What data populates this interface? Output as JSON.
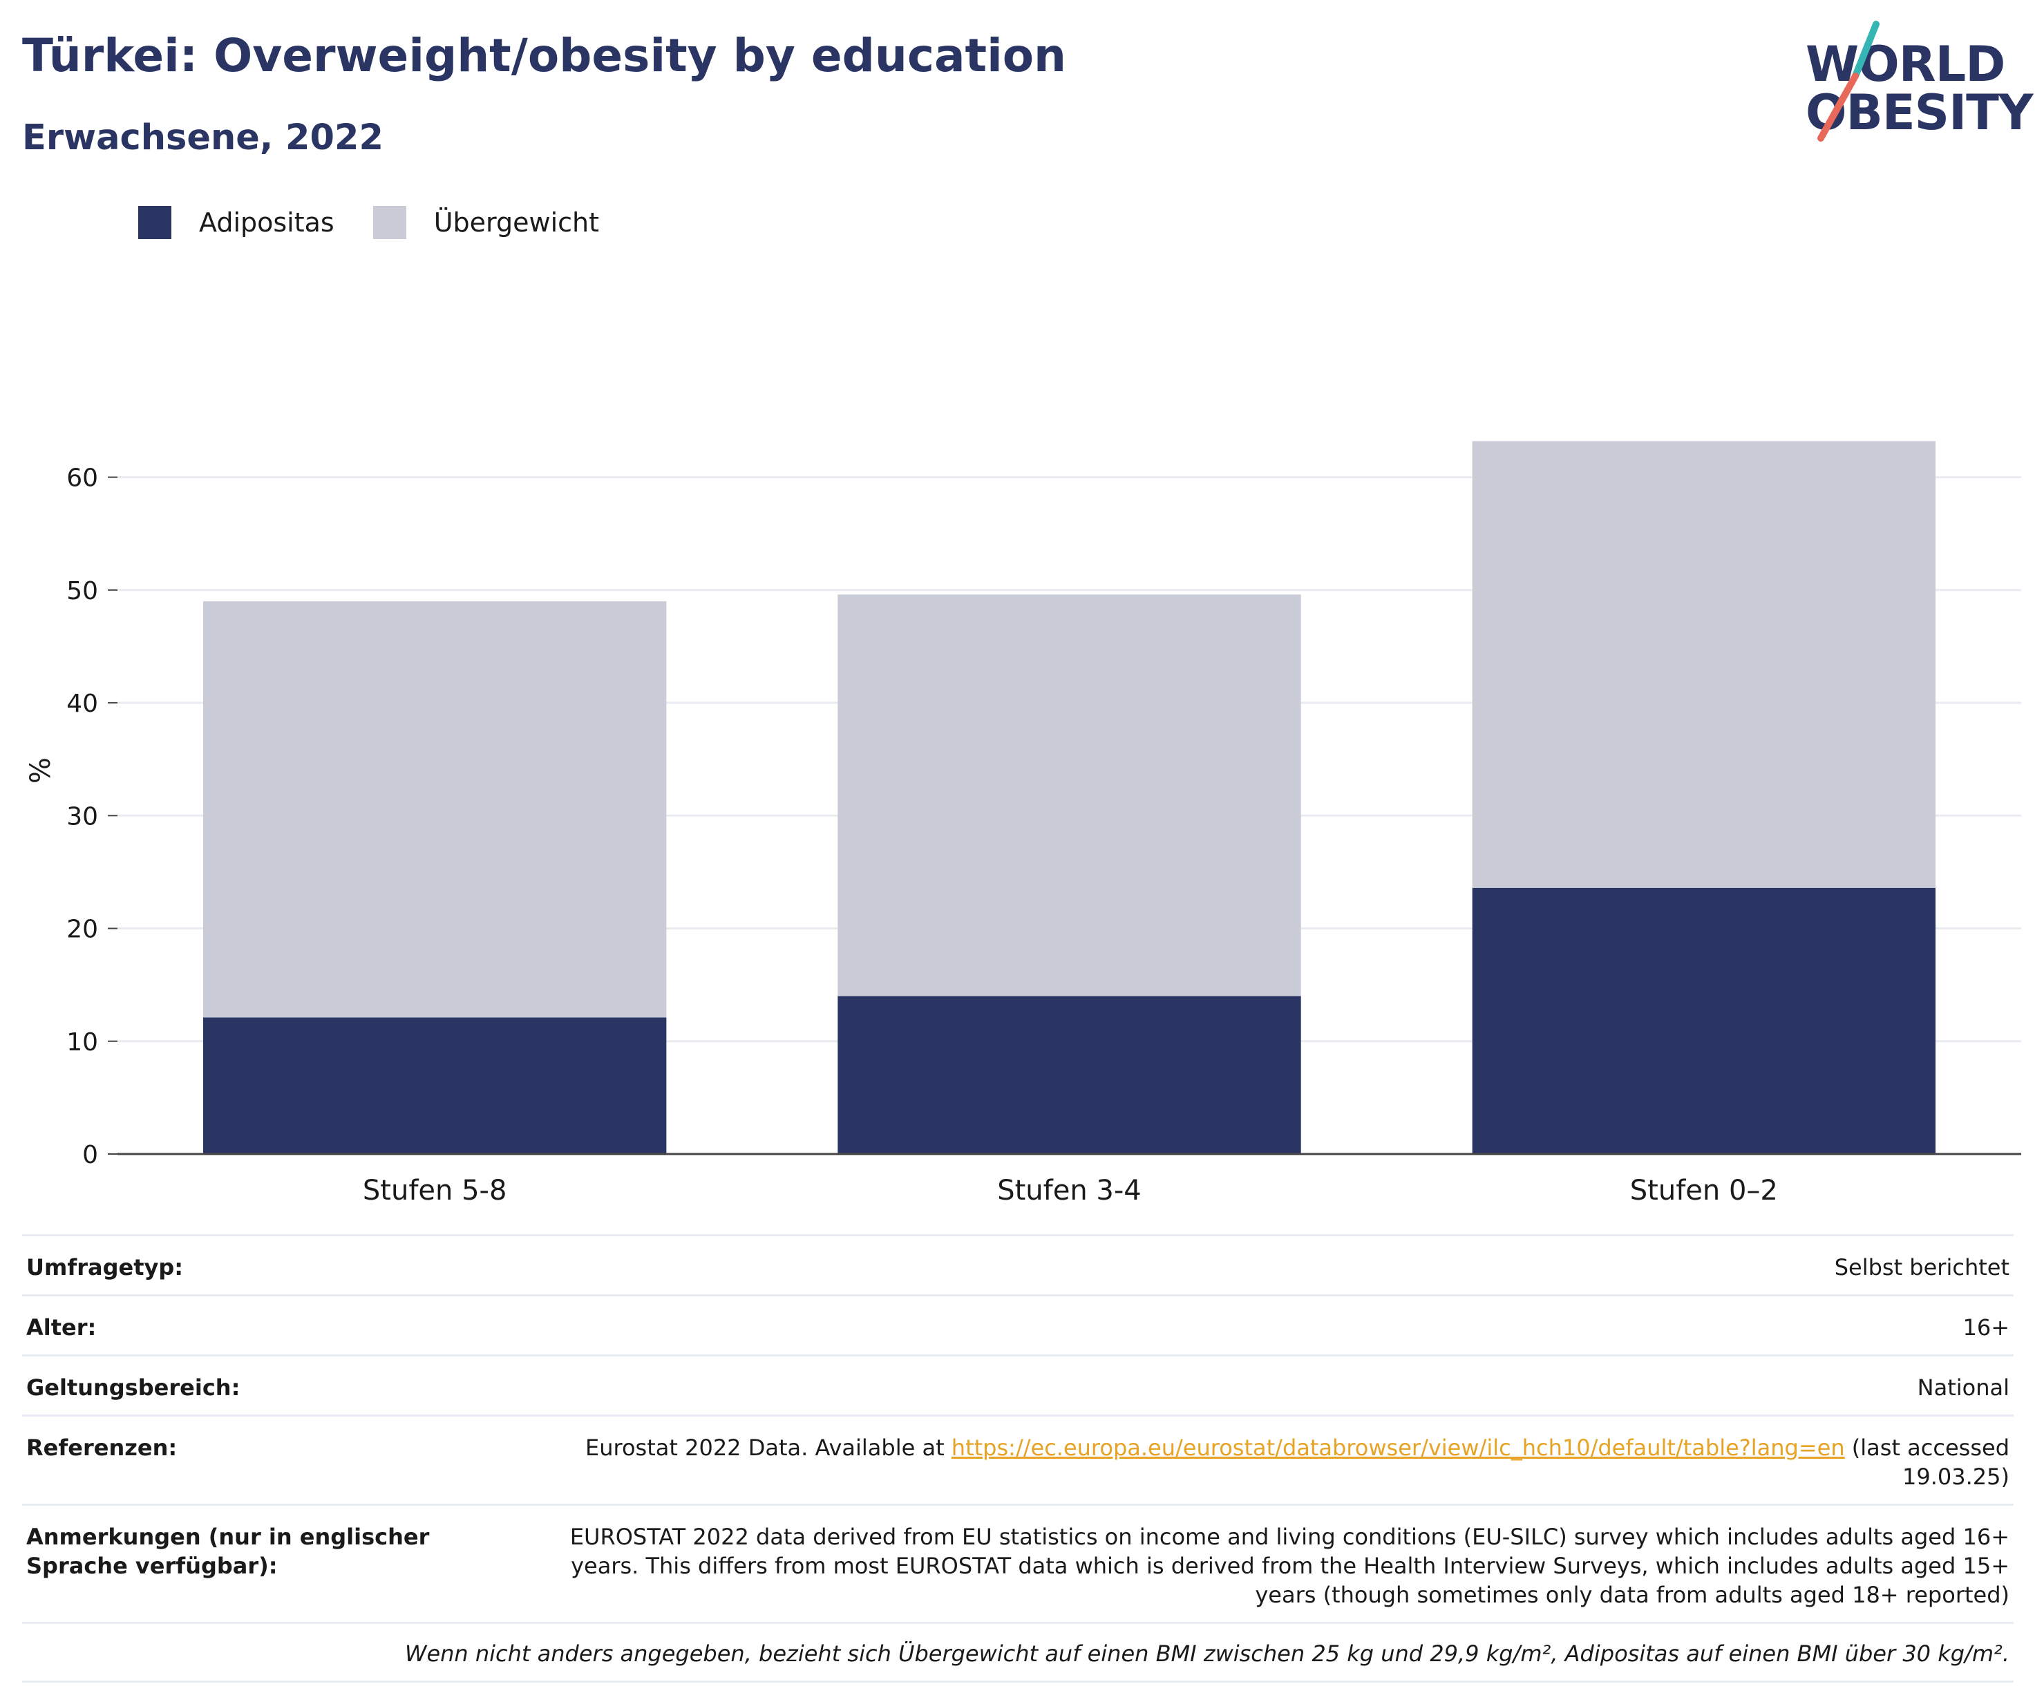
{
  "header": {
    "title": "Türkei: Overweight/obesity by education",
    "subtitle": "Erwachsene, 2022"
  },
  "logo": {
    "line1": "WORLD",
    "line2": "OBESITY",
    "accent_teal": "#35b6b4",
    "accent_red": "#e8695a"
  },
  "legend": [
    {
      "label": "Adipositas",
      "color": "#2a3564"
    },
    {
      "label": "Übergewicht",
      "color": "#c9cbd6"
    }
  ],
  "chart_data": {
    "type": "bar",
    "stacked": true,
    "categories": [
      "Stufen 5-8",
      "Stufen 3-4",
      "Stufen 0–2"
    ],
    "series": [
      {
        "name": "Adipositas",
        "color": "#2a3564",
        "values": [
          12.1,
          14.0,
          23.6
        ]
      },
      {
        "name": "Übergewicht",
        "color": "#c9cbd6",
        "values": [
          36.9,
          35.6,
          39.6
        ]
      }
    ],
    "ylabel": "%",
    "ylim": [
      0,
      68
    ],
    "yticks": [
      0,
      10,
      20,
      30,
      40,
      50,
      60
    ],
    "grid": true,
    "legend_position": "top-left"
  },
  "info": {
    "survey_label": "Umfragetyp:",
    "survey_value": "Selbst berichtet",
    "age_label": "Alter:",
    "age_value": "16+",
    "scope_label": "Geltungsbereich:",
    "scope_value": "National",
    "ref_label": "Referenzen:",
    "ref_prefix": "Eurostat 2022 Data. Available at ",
    "ref_link": "https://ec.europa.eu/eurostat/databrowser/view/ilc_hch10/default/table?lang=en",
    "ref_suffix": " (last accessed 19.03.25)",
    "notes_label": "Anmerkungen (nur in englischer Sprache verfügbar):",
    "notes_value": "EUROSTAT 2022 data derived from EU statistics on income and living conditions (EU-SILC) survey which includes adults aged 16+ years. This differs from most EUROSTAT data which is derived from the Health Interview Surveys, which includes adults aged 15+ years (though sometimes only data from adults aged 18+ reported)",
    "footnote": "Wenn nicht anders angegeben, bezieht sich Übergewicht auf einen BMI zwischen 25 kg und 29,9 kg/m², Adipositas auf einen BMI über 30 kg/m²."
  }
}
